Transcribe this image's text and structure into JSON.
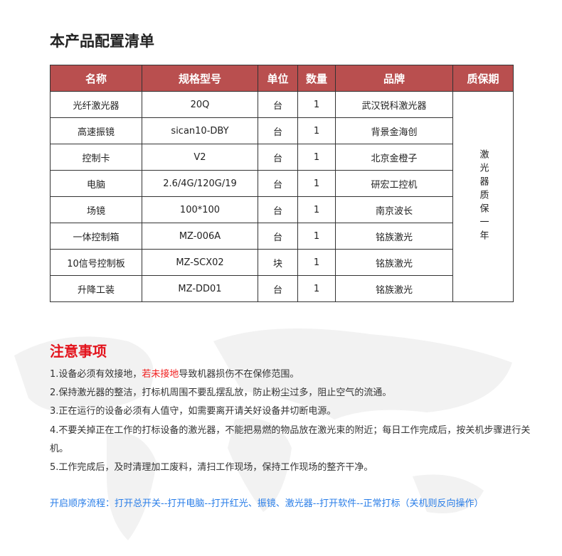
{
  "title": "本产品配置清单",
  "table": {
    "headers": [
      "名称",
      "规格型号",
      "单位",
      "数量",
      "品牌",
      "质保期"
    ],
    "rows": [
      [
        "光纤激光器",
        "20Q",
        "台",
        "1",
        "武汉锐科激光器"
      ],
      [
        "高速振镜",
        "sican10-DBY",
        "台",
        "1",
        "背景金海创"
      ],
      [
        "控制卡",
        "V2",
        "台",
        "1",
        "北京金橙子"
      ],
      [
        "电脑",
        "2.6/4G/120G/19",
        "台",
        "1",
        "研宏工控机"
      ],
      [
        "场镜",
        "100*100",
        "台",
        "1",
        "南京波长"
      ],
      [
        "一体控制箱",
        "MZ-006A",
        "台",
        "1",
        "铭族激光"
      ],
      [
        "10信号控制板",
        "MZ-SCX02",
        "块",
        "1",
        "铭族激光"
      ],
      [
        "升降工装",
        "MZ-DD01",
        "台",
        "1",
        "铭族激光"
      ]
    ],
    "warranty": "激光器质保一年"
  },
  "notes": {
    "title": "注意事项",
    "line1_a": "1.设备必须有效接地，",
    "line1_red": "若未接地",
    "line1_b": "导致机器损伤不在保修范围。",
    "line2": "2.保持激光器的整洁，打标机周围不要乱摆乱放，防止粉尘过多，阻止空气的流通。",
    "line3": "3.正在运行的设备必须有人值守，如需要离开请关好设备并切断电源。",
    "line4": "4.不要关掉正在工作的打标设备的激光器，不能把易燃的物品放在激光束的附近；每日工作完成后，按关机步骤进行关机。",
    "line5": "5.工作完成后，及时清理加工废料，清扫工作现场，保持工作现场的整齐干净。"
  },
  "flow": "开启顺序流程：打开总开关--打开电脑--打开红光、振镜、激光器--打开软件--正常打标（关机则反向操作）",
  "colors": {
    "header": "#b94f4f",
    "warning": "#e3141d",
    "flow": "#2a7ee8"
  }
}
